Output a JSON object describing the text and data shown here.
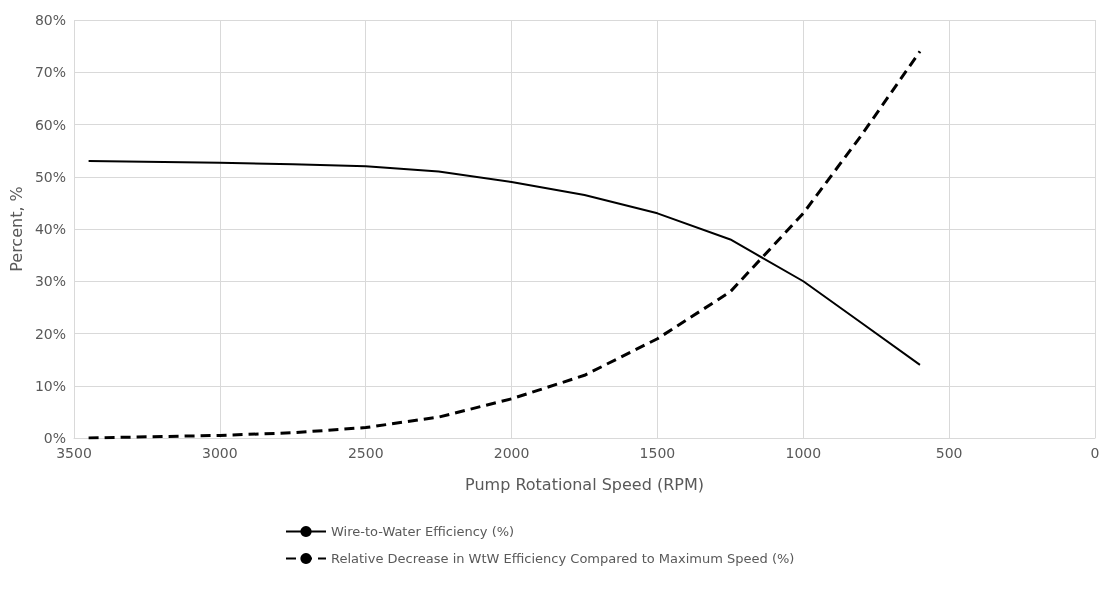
{
  "chart_data": {
    "type": "line",
    "xlabel": "Pump Rotational Speed (RPM)",
    "ylabel": "Percent, %",
    "xlim": [
      3500,
      0
    ],
    "xticks": [
      3500,
      3000,
      2500,
      2000,
      1500,
      1000,
      500,
      0
    ],
    "ylim": [
      0,
      80
    ],
    "yticks": [
      {
        "value": 0,
        "label": "0%"
      },
      {
        "value": 10,
        "label": "10%"
      },
      {
        "value": 20,
        "label": "20%"
      },
      {
        "value": 30,
        "label": "30%"
      },
      {
        "value": 40,
        "label": "40%"
      },
      {
        "value": 50,
        "label": "50%"
      },
      {
        "value": 60,
        "label": "60%"
      },
      {
        "value": 70,
        "label": "70%"
      },
      {
        "value": 80,
        "label": "80%"
      }
    ],
    "x": [
      3450,
      3000,
      2750,
      2500,
      2250,
      2000,
      1750,
      1500,
      1250,
      1000,
      800,
      600
    ],
    "series": [
      {
        "name": "Wire-to-Water Efficiency (%)",
        "color": "#000000",
        "line_style": "solid",
        "values": [
          53,
          52.7,
          52.4,
          52,
          51,
          49,
          46.5,
          43,
          38,
          30,
          22,
          14
        ]
      },
      {
        "name": "Relative Decrease in WtW Efficiency Compared to Maximum Speed (%)",
        "color": "#000000",
        "line_style": "dashed",
        "values": [
          0,
          0.5,
          1,
          2,
          4,
          7.5,
          12,
          19,
          28,
          43,
          58,
          74
        ]
      }
    ],
    "grid": true,
    "legend": "bottom",
    "marker": "none"
  }
}
